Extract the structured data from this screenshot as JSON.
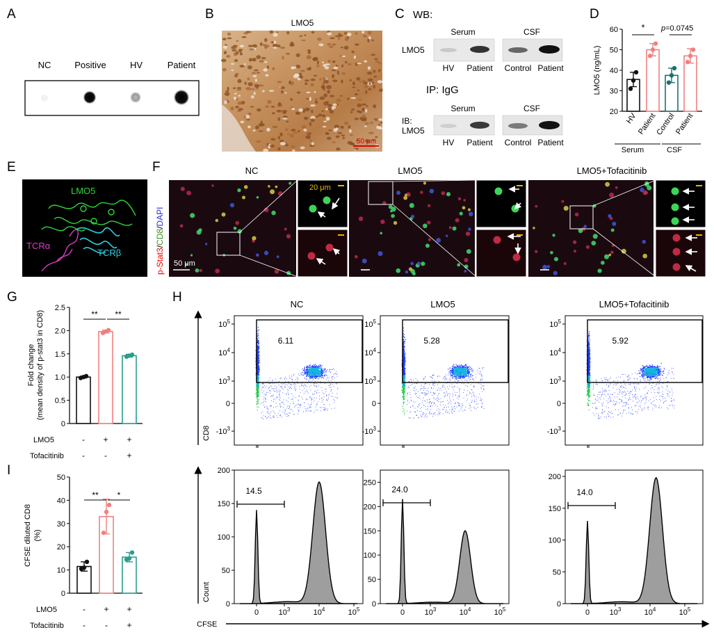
{
  "colors": {
    "hv_black": "#111111",
    "patient_pink": "#f08080",
    "control_teal": "#1a6f70",
    "tofa_teal": "#2a9d8f",
    "sig_red": "#cc0000",
    "green_cell": "#38d45a",
    "red_cell": "#c2314a",
    "flow_blue": "#1f3cff",
    "hist_fill": "#9e9e9e"
  },
  "panels": {
    "A": {
      "letter": "A",
      "labels": [
        "NC",
        "Positive",
        "HV",
        "Patient"
      ]
    },
    "B": {
      "letter": "B",
      "title": "LMO5",
      "scale": "50 μm"
    },
    "C": {
      "letter": "C",
      "wb": "WB:",
      "lmo5": "LMO5",
      "serum": "Serum",
      "csf": "CSF",
      "lanes": [
        "HV",
        "Patient",
        "Control",
        "Patient"
      ],
      "ip": "IP: IgG",
      "ib1": "IB:",
      "ib2": "LMO5"
    },
    "E": {
      "letter": "E",
      "lmo5": "LMO5",
      "tcra": "TCRα",
      "tcrb": "TCRβ"
    },
    "F": {
      "letter": "F",
      "groups": [
        "NC",
        "LMO5",
        "LMO5+Tofacitinib"
      ],
      "ylabel_parts": [
        "p-Stat3",
        "/",
        "CD8",
        "/",
        "DAPI"
      ],
      "scale_big": "50 μm",
      "scale_small": "20 μm"
    },
    "H": {
      "letter": "H",
      "groups": [
        "NC",
        "LMO5",
        "LMO5+Tofacitinib"
      ],
      "cd8": "CD8",
      "count": "Count",
      "cfse": "CFSE"
    }
  },
  "chart_data": [
    {
      "id": "D",
      "type": "bar",
      "letter": "D",
      "categories": [
        "HV",
        "Patient",
        "Control",
        "Patient"
      ],
      "groups": [
        "Serum",
        "CSF"
      ],
      "values": [
        35.5,
        50.0,
        37.5,
        47.0
      ],
      "errors": [
        3.5,
        3.0,
        3.5,
        3.5
      ],
      "points": [
        [
          31,
          35,
          39
        ],
        [
          47,
          50,
          53
        ],
        [
          34,
          37.5,
          41
        ],
        [
          44,
          47,
          50
        ]
      ],
      "ylabel": "LMO5 (ng/mL)",
      "ylim": [
        20,
        60
      ],
      "yticks": [
        "20",
        "30",
        "40",
        "50",
        "60"
      ],
      "sig": [
        "*"
      ],
      "pvalue_prefix": "p",
      "pvalue_rest": "=0.0745"
    },
    {
      "id": "G",
      "type": "bar",
      "letter": "G",
      "values": [
        1.0,
        1.98,
        1.46
      ],
      "errors": [
        0.02,
        0.03,
        0.03
      ],
      "points": [
        [
          0.98,
          1.0,
          1.02
        ],
        [
          1.95,
          1.98,
          2.01
        ],
        [
          1.44,
          1.46,
          1.48
        ]
      ],
      "ylabel1": "Fold change",
      "ylabel2": "(mean density of p-stat3 in CD8)",
      "ylim": [
        0,
        2.5
      ],
      "yticks": [
        "0",
        "0.5",
        "1.0",
        "1.5",
        "2.0",
        "2.5"
      ],
      "row1_label": "LMO5",
      "row1": [
        "-",
        "+",
        "+"
      ],
      "row2_label": "Tofacitinib",
      "row2": [
        "-",
        "-",
        "+"
      ],
      "sig": [
        "**",
        "**"
      ]
    },
    {
      "id": "I",
      "type": "bar",
      "letter": "I",
      "values": [
        11.5,
        33.0,
        15.5
      ],
      "errors": [
        2.0,
        7.5,
        2.0
      ],
      "points": [
        [
          10.5,
          11,
          13.5
        ],
        [
          26,
          35,
          38
        ],
        [
          14.5,
          15,
          17.5
        ]
      ],
      "ylabel1": "CFSE diluted CD8",
      "ylabel2": "(%)",
      "ylim": [
        0,
        50
      ],
      "yticks": [
        "0",
        "10",
        "20",
        "30",
        "40",
        "50"
      ],
      "row1_label": "LMO5",
      "row1": [
        "-",
        "+",
        "+"
      ],
      "row2_label": "Tofacitinib",
      "row2": [
        "-",
        "-",
        "+"
      ],
      "sig": [
        "**",
        "*"
      ]
    },
    {
      "id": "H-scatter",
      "type": "scatter",
      "gate_values": [
        "6.11",
        "5.28",
        "5.92"
      ],
      "yticks": [
        "10^5",
        "10^4",
        "10^3",
        "0",
        "-10^3"
      ]
    },
    {
      "id": "H-hist",
      "type": "area",
      "gate_values": [
        "14.5",
        "24.0",
        "14.0"
      ],
      "yticks": [
        [
          "0",
          "50",
          "100",
          "150",
          "200"
        ],
        [
          "0",
          "50",
          "100",
          "150",
          "200",
          "250"
        ],
        [
          "0",
          "50",
          "100",
          "150",
          "200"
        ]
      ],
      "ymax": [
        200,
        275,
        210
      ],
      "peak1": [
        140,
        215,
        130
      ],
      "peak2": [
        182,
        150,
        198
      ],
      "xticks": [
        "0",
        "10^3",
        "10^4",
        "10^5"
      ]
    }
  ]
}
